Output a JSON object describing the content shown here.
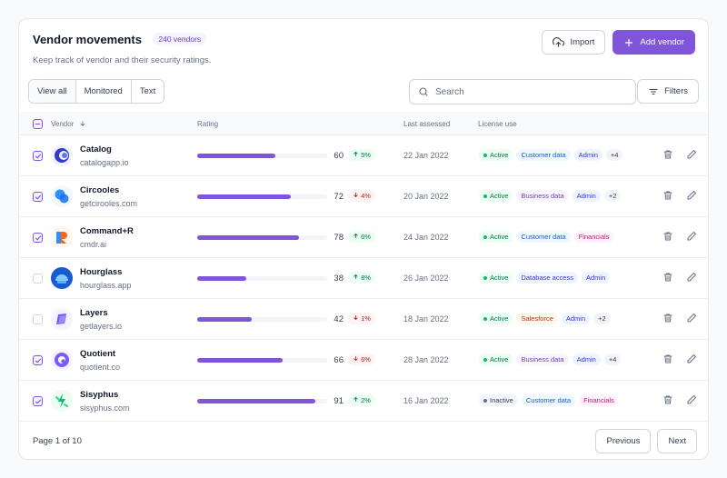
{
  "header": {
    "title": "Vendor movements",
    "count_badge": "240 vendors",
    "subtitle": "Keep track of vendor and their security ratings.",
    "import_label": "Import",
    "add_label": "Add vendor"
  },
  "toolbar": {
    "tabs": [
      "View all",
      "Monitored",
      "Text"
    ],
    "active_tab": "View all",
    "search_placeholder": "Search",
    "filters_label": "Filters"
  },
  "table": {
    "columns": {
      "vendor": "Vendor",
      "rating": "Rating",
      "last_assessed": "Last assessed",
      "license_use": "License use"
    },
    "rows": [
      {
        "checked": true,
        "name": "Catalog",
        "domain": "catalogapp.io",
        "logo": "catalog-logo",
        "rating": 60,
        "delta": "5%",
        "delta_dir": "up",
        "date": "22 Jan 2022",
        "tags": [
          {
            "label": "Active",
            "kind": "status-active"
          },
          {
            "label": "Customer data",
            "kind": "blue"
          },
          {
            "label": "Admin",
            "kind": "indigo"
          },
          {
            "label": "+4",
            "kind": "gray"
          }
        ]
      },
      {
        "checked": true,
        "name": "Circooles",
        "domain": "getcirooles.com",
        "logo": "circooles-logo",
        "rating": 72,
        "delta": "4%",
        "delta_dir": "down",
        "date": "20 Jan 2022",
        "tags": [
          {
            "label": "Active",
            "kind": "status-active"
          },
          {
            "label": "Business data",
            "kind": "purple"
          },
          {
            "label": "Admin",
            "kind": "indigo"
          },
          {
            "label": "+2",
            "kind": "gray"
          }
        ]
      },
      {
        "checked": true,
        "name": "Command+R",
        "domain": "cmdr.ai",
        "logo": "commandr-logo",
        "rating": 78,
        "delta": "6%",
        "delta_dir": "up",
        "date": "24 Jan 2022",
        "tags": [
          {
            "label": "Active",
            "kind": "status-active"
          },
          {
            "label": "Customer data",
            "kind": "blue"
          },
          {
            "label": "Financials",
            "kind": "pink"
          }
        ]
      },
      {
        "checked": false,
        "name": "Hourglass",
        "domain": "hourglass.app",
        "logo": "hourglass-logo",
        "rating": 38,
        "delta": "8%",
        "delta_dir": "up",
        "date": "26 Jan 2022",
        "tags": [
          {
            "label": "Active",
            "kind": "status-active"
          },
          {
            "label": "Database access",
            "kind": "indigo"
          },
          {
            "label": "Admin",
            "kind": "indigo"
          }
        ]
      },
      {
        "checked": false,
        "name": "Layers",
        "domain": "getlayers.io",
        "logo": "layers-logo",
        "rating": 42,
        "delta": "1%",
        "delta_dir": "down",
        "date": "18 Jan 2022",
        "tags": [
          {
            "label": "Active",
            "kind": "status-active"
          },
          {
            "label": "Salesforce",
            "kind": "orange"
          },
          {
            "label": "Admin",
            "kind": "indigo"
          },
          {
            "label": "+2",
            "kind": "gray"
          }
        ]
      },
      {
        "checked": true,
        "name": "Quotient",
        "domain": "quotient.co",
        "logo": "quotient-logo",
        "rating": 66,
        "delta": "6%",
        "delta_dir": "down",
        "date": "28 Jan 2022",
        "tags": [
          {
            "label": "Active",
            "kind": "status-active"
          },
          {
            "label": "Business data",
            "kind": "purple"
          },
          {
            "label": "Admin",
            "kind": "indigo"
          },
          {
            "label": "+4",
            "kind": "gray"
          }
        ]
      },
      {
        "checked": true,
        "name": "Sisyphus",
        "domain": "sisyphus.com",
        "logo": "sisyphus-logo",
        "rating": 91,
        "delta": "2%",
        "delta_dir": "up",
        "date": "16 Jan 2022",
        "tags": [
          {
            "label": "Inactive",
            "kind": "status-inactive"
          },
          {
            "label": "Customer data",
            "kind": "blue"
          },
          {
            "label": "Financials",
            "kind": "pink"
          }
        ]
      }
    ]
  },
  "footer": {
    "page_info": "Page 1 of 10",
    "previous_label": "Previous",
    "next_label": "Next"
  },
  "colors": {
    "accent": "#7f56d9",
    "up": "#027a48",
    "down": "#b42318"
  }
}
